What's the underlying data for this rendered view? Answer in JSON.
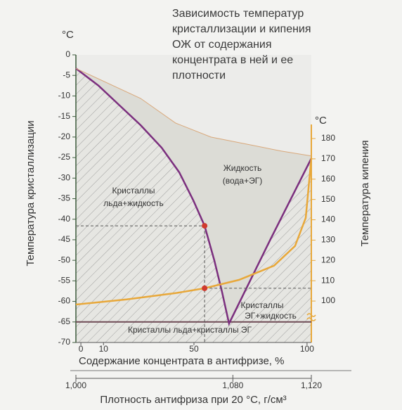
{
  "chart_data": {
    "type": "line",
    "title": [
      "Зависимость температур",
      "кристаллизации и кипения",
      "ОЖ от содержания",
      "концентрата в ней и ее",
      "плотности"
    ],
    "y_unit": "°C",
    "y2_unit": "°C",
    "y_label": "Температура кристаллизации",
    "y2_label": "Температура кипения",
    "x_label": "Содержание концентрата в антифризе, %",
    "x2_label": "Плотность антифриза при 20 °C, г/см³",
    "xlim": [
      -2.2,
      101.9
    ],
    "xticks": [
      0,
      10,
      50,
      100
    ],
    "x2lim": [
      1000,
      1120
    ],
    "x2ticks": [
      {
        "value": 1000,
        "label": "1,000"
      },
      {
        "value": 1080,
        "label": "1,080"
      },
      {
        "value": 1120,
        "label": "1,120"
      }
    ],
    "ylim": [
      -70,
      0
    ],
    "yticks": [
      0,
      -5,
      -10,
      -15,
      -20,
      -25,
      -30,
      -35,
      -40,
      -45,
      -50,
      -55,
      -60,
      -65,
      -70
    ],
    "y2lim": [
      79.6,
      221.2
    ],
    "y2ticks": [
      100,
      110,
      120,
      130,
      140,
      150,
      160,
      170,
      180
    ],
    "series": [
      {
        "color": "#7b2f7e",
        "axis": "y",
        "x": [
          -2.2,
          7.8,
          17.1,
          26.4,
          35.7,
          43.5,
          49.7,
          54.7,
          59.0,
          62.4,
          65.5,
          83.9,
          101.9
        ],
        "values": [
          -3.3,
          -7.5,
          -12.3,
          -17.1,
          -22.6,
          -28.6,
          -35.4,
          -41.6,
          -50.0,
          -57.7,
          -65.4,
          -44.8,
          -25.2
        ]
      },
      {
        "color": "#e8a83a",
        "axis": "y2",
        "x": [
          -2.2,
          20.2,
          41.9,
          54.7,
          69.9,
          85.4,
          94.7,
          99.4,
          101.9
        ],
        "values": [
          98.3,
          100.8,
          103.9,
          106.3,
          110.4,
          117.4,
          127.1,
          140.9,
          170.3
        ]
      },
      {
        "color": "#d9a87a",
        "axis": "y",
        "x": [
          -2.2,
          26.4,
          41.9,
          57.5,
          73.0,
          88.5,
          101.9
        ],
        "values": [
          -3.3,
          -10.6,
          -16.6,
          -20.0,
          -21.7,
          -23.4,
          -24.6
        ]
      }
    ],
    "eutectic_line": -65,
    "markers": [
      {
        "x": 54.7,
        "y": -41.6
      },
      {
        "x": 54.7,
        "y": 106.3,
        "axis": "y2"
      }
    ],
    "annotations": [
      {
        "lines": [
          "Кристаллы",
          "льда+жидкость"
        ]
      },
      {
        "lines": [
          "Жидкость",
          "(вода+ЭГ)"
        ]
      },
      {
        "lines": [
          "Кристаллы",
          "ЭГ+жидкость"
        ]
      },
      {
        "lines": [
          "Кристаллы льда+кристаллы ЭГ"
        ]
      }
    ]
  }
}
